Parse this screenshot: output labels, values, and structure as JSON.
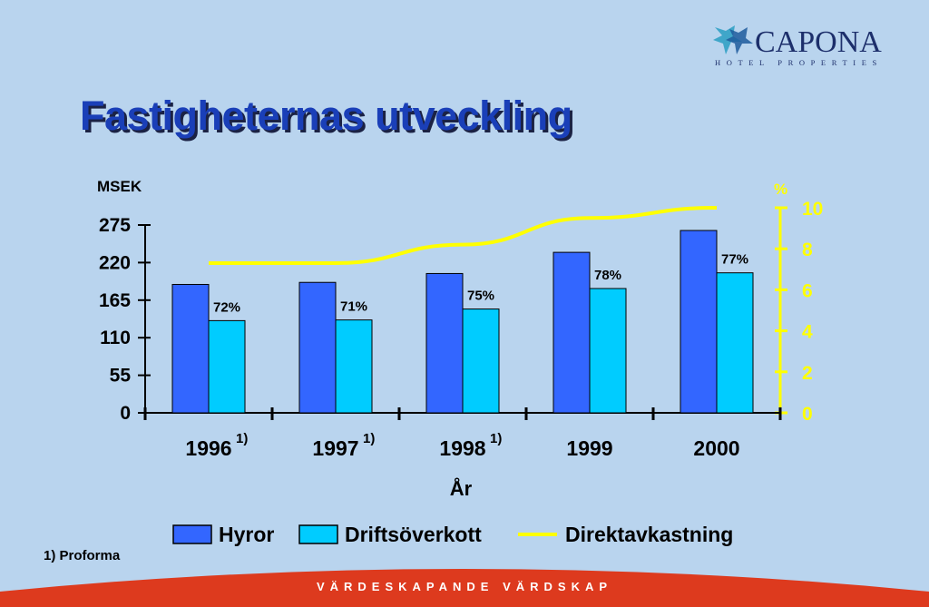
{
  "brand": {
    "name": "CAPONA",
    "subtitle": "HOTEL PROPERTIES"
  },
  "title": "Fastigheternas utveckling",
  "footnote": "1) Proforma",
  "banner": "VÄRDESKAPANDE VÄRDSKAP",
  "colors": {
    "background": "#b9d4ee",
    "hyror": "#3366ff",
    "drift": "#00ccff",
    "line": "#ffff00",
    "title": "#1a3fb8",
    "banner": "#dd3a1e"
  },
  "chart_data": {
    "type": "bar",
    "title": "",
    "xlabel": "År",
    "ylabel": "MSEK",
    "ylabel_right": "%",
    "ylim": [
      0,
      275
    ],
    "ylim_right": [
      0,
      10
    ],
    "yticks": [
      "0",
      "55",
      "110",
      "165",
      "220",
      "275"
    ],
    "yticks_right": [
      "0",
      "2",
      "4",
      "6",
      "8",
      "10"
    ],
    "categories": [
      "1996",
      "1997",
      "1998",
      "1999",
      "2000"
    ],
    "category_notes": [
      "1)",
      "1)",
      "1)",
      "",
      ""
    ],
    "series": [
      {
        "name": "Hyror",
        "values": [
          188,
          191,
          204,
          235,
          267
        ]
      },
      {
        "name": "Driftsöverkott",
        "values": [
          135,
          136,
          152,
          182,
          205
        ],
        "labels": [
          "72%",
          "71%",
          "75%",
          "78%",
          "77%"
        ]
      },
      {
        "name": "Direktavkastning",
        "axis": "right",
        "render": "line",
        "values": [
          7.3,
          7.3,
          8.2,
          9.5,
          10.0
        ]
      }
    ],
    "grid": false,
    "legend": "bottom"
  }
}
